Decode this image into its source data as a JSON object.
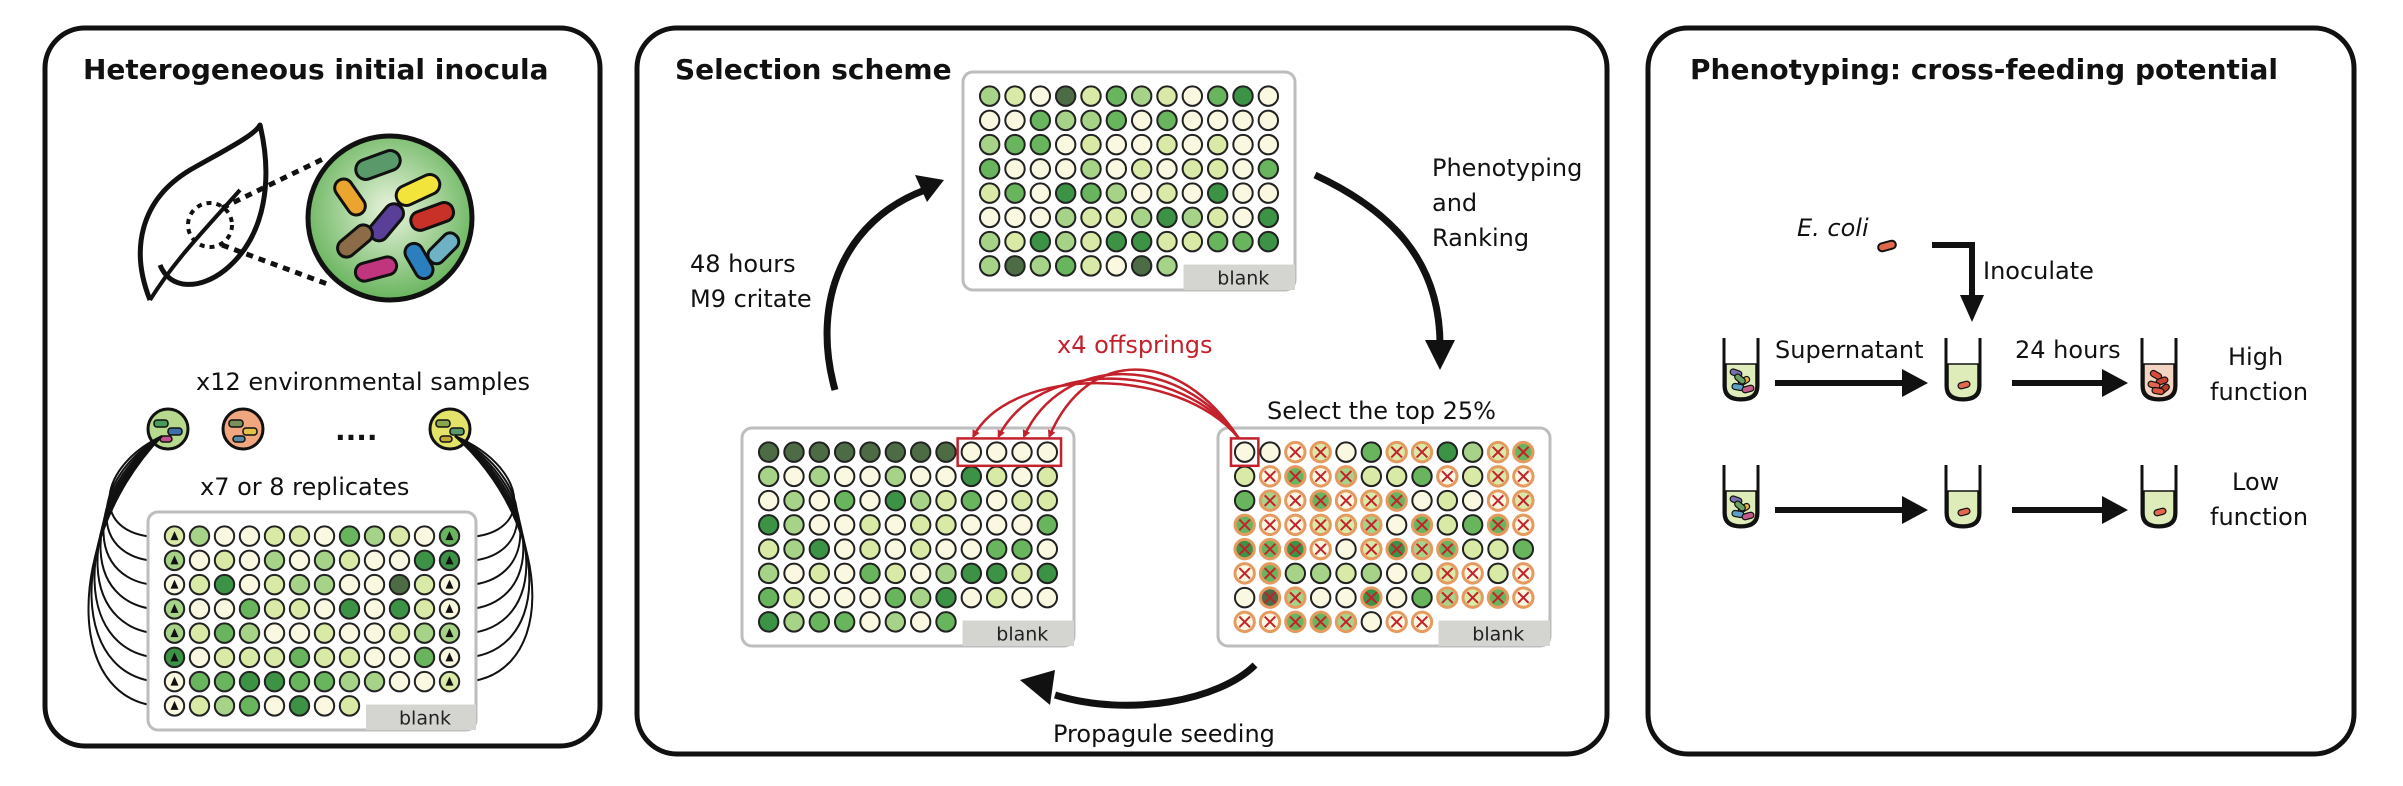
{
  "panels": {
    "inocula": {
      "title": "Heterogeneous initial inocula",
      "samples_label": "x12 environmental samples",
      "ellipsis": "....",
      "replicates_label": "x7 or 8 replicates",
      "blank_label": "blank"
    },
    "selection": {
      "title": "Selection scheme",
      "grow_label_1": "48 hours",
      "grow_label_2": "M9 critate",
      "phenotype_label_1": "Phenotyping",
      "phenotype_label_2": "and",
      "phenotype_label_3": "Ranking",
      "select_label": "Select the top 25%",
      "offspring_label": "x4 offsprings",
      "seeding_label": "Propagule seeding",
      "blank_label": "blank"
    },
    "phenotyping": {
      "title": "Phenotyping: cross-feeding potential",
      "ecoli_label": "E. coli",
      "inoculate_label": "Inoculate",
      "supernatant_label": "Supernatant",
      "hours_label": "24 hours",
      "high_label_1": "High",
      "high_label_2": "function",
      "low_label_1": "Low",
      "low_label_2": "function"
    }
  },
  "colors": {
    "outline": "#111111",
    "offspring_red": "#c3212b",
    "well_empty": "#fbf8e1",
    "well_pale": "#d8eaa6",
    "well_light": "#a7d389",
    "well_mid": "#69b55e",
    "well_dark": "#3c9346",
    "well_darkest": "#4d6b45",
    "cross_orange": "#e59a5f",
    "blank_gray": "#d4d4d0",
    "leaf_gradient_center": "#eaf4de",
    "leaf_gradient_edge": "#68b45d",
    "medium_green": "#ddecb9"
  }
}
